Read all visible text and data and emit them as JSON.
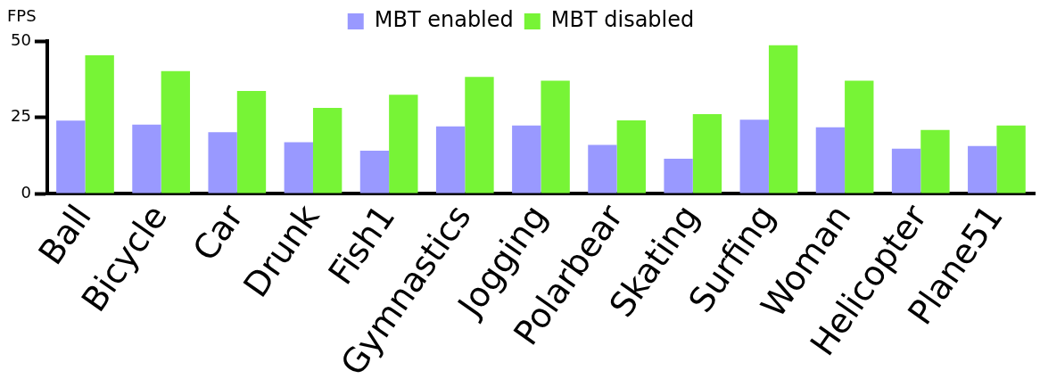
{
  "chart_data": {
    "type": "bar",
    "ylabel": "FPS",
    "categories": [
      "Ball",
      "Bicycle",
      "Car",
      "Drunk",
      "Fish1",
      "Gymnastics",
      "Jogging",
      "Polarbear",
      "Skating",
      "Surfing",
      "Woman",
      "Helicopter",
      "Plane51"
    ],
    "series": [
      {
        "name": "MBT enabled",
        "color": "#9999ff",
        "values": [
          23.9,
          22.6,
          20.1,
          16.8,
          14.0,
          22.0,
          22.3,
          15.9,
          11.4,
          24.2,
          21.7,
          14.7,
          15.6
        ]
      },
      {
        "name": "MBT disabled",
        "color": "#77f436",
        "values": [
          45.3,
          40.1,
          33.6,
          28.1,
          32.4,
          38.2,
          37.0,
          24.0,
          26.0,
          48.6,
          37.0,
          20.8,
          22.3
        ]
      }
    ],
    "ylim": [
      0,
      50
    ],
    "yticks": [
      0,
      25,
      50
    ],
    "grid": false,
    "legend": "top"
  }
}
